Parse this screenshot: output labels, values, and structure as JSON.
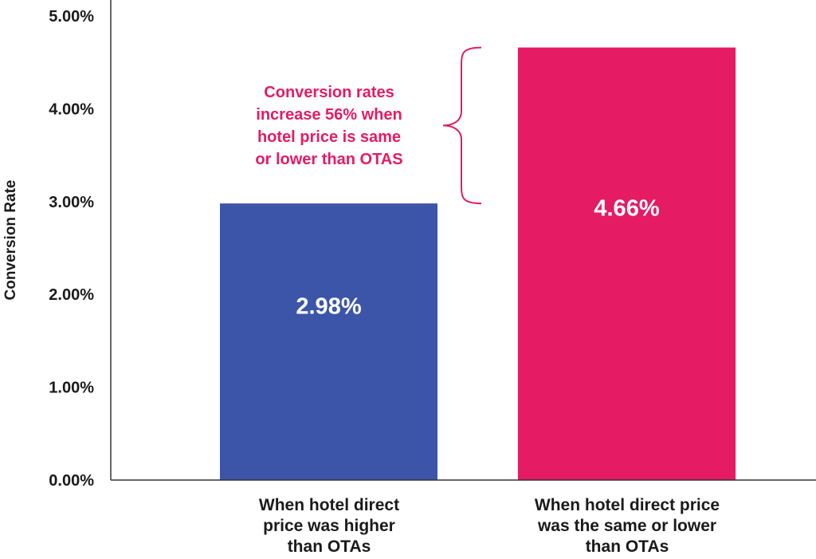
{
  "chart_data": {
    "type": "bar",
    "ylabel": "Conversion Rate",
    "xlabel": "",
    "ylim": [
      0,
      5
    ],
    "y_ticks": [
      "0.00%",
      "1.00%",
      "2.00%",
      "3.00%",
      "4.00%",
      "5.00%"
    ],
    "categories": [
      [
        "When hotel direct",
        "price was higher",
        "than OTAs"
      ],
      [
        "When hotel direct price",
        "was the same or lower",
        "than OTAs"
      ]
    ],
    "values": [
      2.98,
      4.66
    ],
    "data_labels": [
      "2.98%",
      "4.66%"
    ],
    "colors": [
      "#3c55a8",
      "#e51b64"
    ],
    "annotation": {
      "lines": [
        "Conversion rates",
        "increase 56% when",
        "hotel price is same",
        "or lower than OTAS"
      ],
      "color": "#e51b64",
      "brace": "spans bar 2 above bar 1 height"
    },
    "grid": false,
    "legend": "none"
  }
}
